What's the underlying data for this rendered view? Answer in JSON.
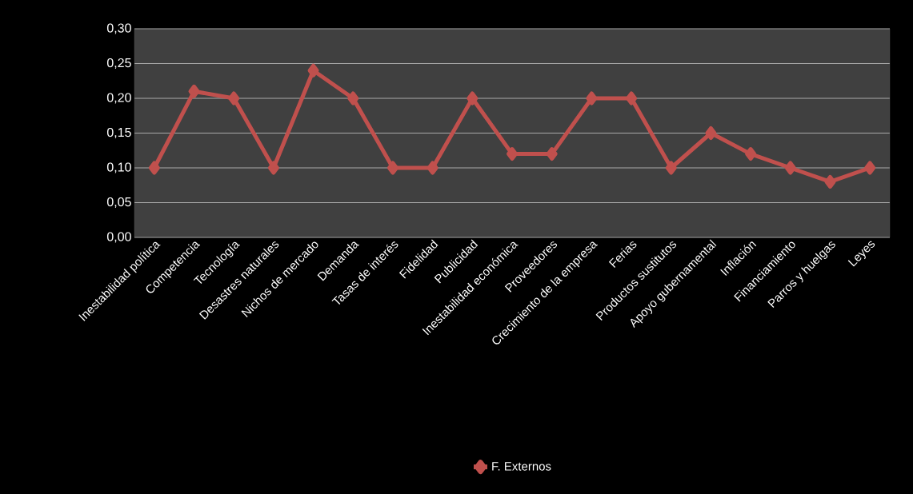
{
  "chart_data": {
    "type": "line",
    "categories": [
      "Inestabilidad política",
      "Competencia",
      "Tecnología",
      "Desastres naturales",
      "Nichos de mercado",
      "Demanda",
      "Tasas de interés",
      "Fidelidad",
      "Publicidad",
      "Inestabilidad económica",
      "Proveedores",
      "Crecimiento de la empresa",
      "Ferias",
      "Productos sustitutos",
      "Apoyo gubernamental",
      "Inflación",
      "Financiamiento",
      "Parros y huelgas",
      "Leyes"
    ],
    "series": [
      {
        "name": "F. Externos",
        "color": "#c0504d",
        "values": [
          0.1,
          0.21,
          0.2,
          0.1,
          0.24,
          0.2,
          0.1,
          0.1,
          0.2,
          0.12,
          0.12,
          0.2,
          0.2,
          0.1,
          0.15,
          0.12,
          0.1,
          0.08,
          0.1
        ]
      }
    ],
    "ylim": [
      0,
      0.3
    ],
    "yticks": [
      {
        "value": 0,
        "label": "0,00"
      },
      {
        "value": 0.05,
        "label": "0,05"
      },
      {
        "value": 0.1,
        "label": "0,10"
      },
      {
        "value": 0.15,
        "label": "0,15"
      },
      {
        "value": 0.2,
        "label": "0,20"
      },
      {
        "value": 0.25,
        "label": "0,25"
      },
      {
        "value": 0.3,
        "label": "0,30"
      }
    ],
    "grid": "y",
    "legend": "bottom",
    "marker": "diamond"
  }
}
